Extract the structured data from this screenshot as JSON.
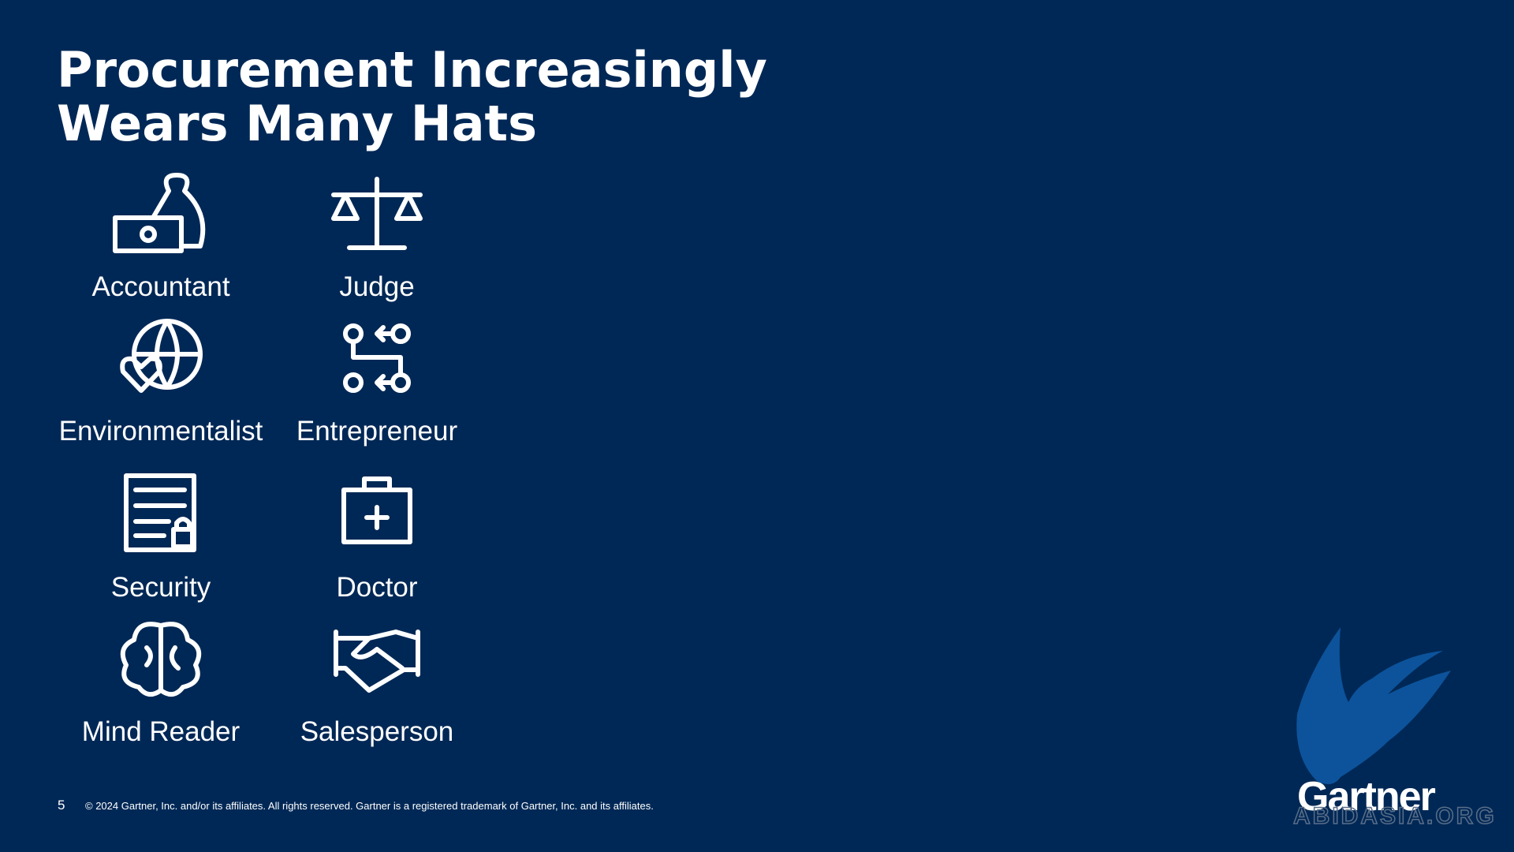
{
  "header": {
    "title_lines": [
      "Procurement Increasingly",
      "Wears Many Hats"
    ]
  },
  "roles": [
    {
      "label": "Accountant"
    },
    {
      "label": "Judge"
    },
    {
      "label": "Environmentalist"
    },
    {
      "label": "Entrepreneur"
    },
    {
      "label": "Security"
    },
    {
      "label": "Doctor"
    },
    {
      "label": "Mind Reader"
    },
    {
      "label": "Salesperson"
    }
  ],
  "footer": {
    "page_number": "5",
    "copyright": "© 2024 Gartner, Inc. and/or its affiliates. All rights reserved. Gartner is a registered trademark of Gartner, Inc. and its affiliates.",
    "logo": "Gartner",
    "watermark": "ABIDASIA.ORG"
  }
}
